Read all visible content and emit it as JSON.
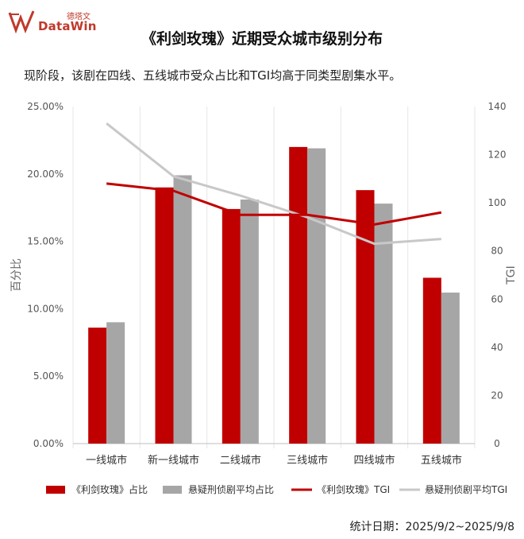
{
  "brand": {
    "name": "DataWin",
    "cn": "德塔文"
  },
  "title": "《利剑玫瑰》近期受众城市级别分布",
  "subtitle": "现阶段，该剧在四线、五线城市受众占比和TGI均高于同类型剧集水平。",
  "footer": "统计日期：2025/9/2~2025/9/8",
  "colors": {
    "red": "#c00000",
    "gray": "#a6a6a6",
    "light_gray": "#c8c8c8"
  },
  "chart_data": {
    "type": "bar",
    "categories": [
      "一线城市",
      "新一线城市",
      "二线城市",
      "三线城市",
      "四线城市",
      "五线城市"
    ],
    "series": [
      {
        "name": "《利剑玫瑰》占比",
        "kind": "bar",
        "axis": "left",
        "color": "#c00000",
        "values": [
          8.6,
          19.0,
          17.4,
          22.0,
          18.8,
          12.3
        ]
      },
      {
        "name": "悬疑刑侦剧平均占比",
        "kind": "bar",
        "axis": "left",
        "color": "#a6a6a6",
        "values": [
          9.0,
          19.9,
          18.1,
          21.9,
          17.8,
          11.2
        ]
      },
      {
        "name": "《利剑玫瑰》TGI",
        "kind": "line",
        "axis": "right",
        "color": "#c00000",
        "values": [
          108,
          105,
          95,
          95,
          91,
          96
        ]
      },
      {
        "name": "悬疑刑侦剧平均TGI",
        "kind": "line",
        "axis": "right",
        "color": "#c8c8c8",
        "values": [
          133,
          111,
          103,
          94,
          83,
          85
        ]
      }
    ],
    "ylabel": "百分比",
    "ylabel_right": "TGI",
    "ylim": [
      0,
      25
    ],
    "ylim_right": [
      0,
      140
    ],
    "yticks": [
      "0.00%",
      "5.00%",
      "10.00%",
      "15.00%",
      "20.00%",
      "25.00%"
    ],
    "yticks_right": [
      "0",
      "20",
      "40",
      "60",
      "80",
      "100",
      "120",
      "140"
    ],
    "legend_position": "bottom",
    "grid": false
  }
}
